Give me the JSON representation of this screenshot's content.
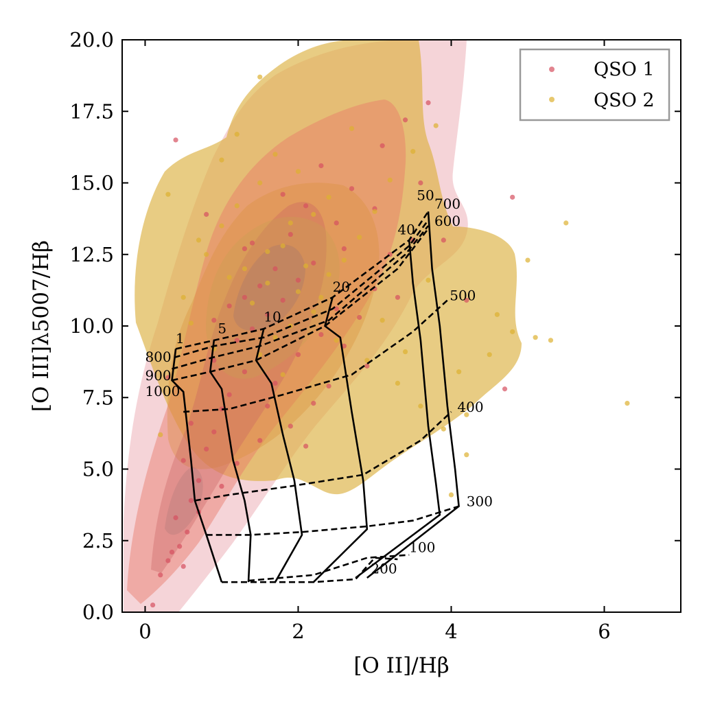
{
  "chart_data": {
    "type": "scatter",
    "xlabel": "[O II]/Hβ",
    "ylabel": "[O III]λ5007/Hβ",
    "xlim": [
      -0.3,
      7.0
    ],
    "ylim": [
      0.0,
      20.0
    ],
    "xticks": [
      0,
      2,
      4,
      6
    ],
    "yticks": [
      0.0,
      2.5,
      5.0,
      7.5,
      10.0,
      12.5,
      15.0,
      17.5,
      20.0
    ],
    "xtick_labels": [
      "0",
      "2",
      "4",
      "6"
    ],
    "ytick_labels": [
      "0.0",
      "2.5",
      "5.0",
      "7.5",
      "10.0",
      "12.5",
      "15.0",
      "17.5",
      "20.0"
    ],
    "legend_position": "top-right",
    "colors": {
      "qso1": "#d55060",
      "qso2": "#ddb030"
    },
    "series": [
      {
        "name": "QSO 1",
        "color": "#d55060",
        "points": [
          [
            0.1,
            0.25
          ],
          [
            0.2,
            1.3
          ],
          [
            0.35,
            2.1
          ],
          [
            0.45,
            2.3
          ],
          [
            0.55,
            2.8
          ],
          [
            0.4,
            3.3
          ],
          [
            0.6,
            3.9
          ],
          [
            0.7,
            4.6
          ],
          [
            0.5,
            5.3
          ],
          [
            0.8,
            5.7
          ],
          [
            0.9,
            6.3
          ],
          [
            0.6,
            6.6
          ],
          [
            1.0,
            7.1
          ],
          [
            1.1,
            7.6
          ],
          [
            0.3,
            8.2
          ],
          [
            0.9,
            8.8
          ],
          [
            1.2,
            9.5
          ],
          [
            1.4,
            9.9
          ],
          [
            1.6,
            10.4
          ],
          [
            1.8,
            10.9
          ],
          [
            1.5,
            11.4
          ],
          [
            1.7,
            12.0
          ],
          [
            2.0,
            11.6
          ],
          [
            2.2,
            12.2
          ],
          [
            1.3,
            12.7
          ],
          [
            1.9,
            13.2
          ],
          [
            2.5,
            13.6
          ],
          [
            2.1,
            14.2
          ],
          [
            2.7,
            14.8
          ],
          [
            2.3,
            15.6
          ],
          [
            3.1,
            16.3
          ],
          [
            3.4,
            17.2
          ],
          [
            3.7,
            17.8
          ],
          [
            0.4,
            16.5
          ],
          [
            0.8,
            13.9
          ],
          [
            1.1,
            10.7
          ],
          [
            1.3,
            8.4
          ],
          [
            1.6,
            7.2
          ],
          [
            1.9,
            6.5
          ],
          [
            2.1,
            5.8
          ],
          [
            2.4,
            7.9
          ],
          [
            2.6,
            9.3
          ],
          [
            2.8,
            10.3
          ],
          [
            3.0,
            11.3
          ],
          [
            3.2,
            12.5
          ],
          [
            3.5,
            13.0
          ],
          [
            2.9,
            8.6
          ],
          [
            2.3,
            9.7
          ],
          [
            1.0,
            4.4
          ],
          [
            0.7,
            3.5
          ],
          [
            0.3,
            1.8
          ],
          [
            0.5,
            1.6
          ],
          [
            1.2,
            5.2
          ],
          [
            1.5,
            6.0
          ],
          [
            2.2,
            7.3
          ],
          [
            3.3,
            11.0
          ],
          [
            4.8,
            14.5
          ],
          [
            4.7,
            7.8
          ],
          [
            4.2,
            10.9
          ],
          [
            3.6,
            15.0
          ],
          [
            1.4,
            12.9
          ],
          [
            1.8,
            14.6
          ],
          [
            2.0,
            9.0
          ],
          [
            2.5,
            10.6
          ],
          [
            1.7,
            8.0
          ],
          [
            0.9,
            10.2
          ],
          [
            1.3,
            11.0
          ],
          [
            2.6,
            12.7
          ],
          [
            3.9,
            13.0
          ],
          [
            3.0,
            14.1
          ]
        ]
      },
      {
        "name": "QSO 2",
        "color": "#ddb030",
        "points": [
          [
            0.5,
            11.0
          ],
          [
            0.8,
            12.5
          ],
          [
            1.0,
            13.5
          ],
          [
            1.2,
            14.2
          ],
          [
            1.5,
            15.0
          ],
          [
            1.7,
            16.0
          ],
          [
            1.5,
            18.7
          ],
          [
            0.3,
            14.6
          ],
          [
            1.3,
            12.0
          ],
          [
            1.6,
            11.5
          ],
          [
            1.8,
            12.8
          ],
          [
            2.0,
            11.2
          ],
          [
            2.2,
            10.5
          ],
          [
            1.9,
            10.0
          ],
          [
            1.7,
            9.6
          ],
          [
            2.4,
            11.8
          ],
          [
            2.6,
            12.3
          ],
          [
            2.8,
            13.1
          ],
          [
            3.0,
            14.0
          ],
          [
            3.2,
            15.1
          ],
          [
            3.5,
            16.1
          ],
          [
            3.8,
            17.0
          ],
          [
            2.5,
            9.5
          ],
          [
            2.9,
            8.8
          ],
          [
            3.3,
            8.0
          ],
          [
            3.6,
            7.2
          ],
          [
            3.9,
            6.4
          ],
          [
            4.2,
            5.5
          ],
          [
            4.0,
            4.1
          ],
          [
            4.2,
            6.9
          ],
          [
            4.5,
            9.0
          ],
          [
            4.8,
            9.8
          ],
          [
            5.1,
            9.6
          ],
          [
            5.3,
            9.5
          ],
          [
            5.5,
            13.6
          ],
          [
            6.3,
            7.3
          ],
          [
            5.0,
            12.3
          ],
          [
            4.6,
            10.4
          ],
          [
            1.4,
            10.8
          ],
          [
            1.6,
            12.6
          ],
          [
            1.9,
            13.6
          ],
          [
            2.1,
            12.1
          ],
          [
            2.3,
            11.0
          ],
          [
            1.1,
            11.7
          ],
          [
            0.9,
            9.2
          ],
          [
            0.6,
            10.1
          ],
          [
            0.2,
            6.2
          ],
          [
            1.0,
            15.8
          ],
          [
            2.0,
            15.4
          ],
          [
            2.7,
            16.9
          ],
          [
            3.1,
            10.2
          ],
          [
            3.4,
            9.1
          ],
          [
            2.2,
            13.9
          ],
          [
            1.5,
            9.0
          ],
          [
            1.8,
            8.3
          ],
          [
            2.4,
            14.5
          ],
          [
            0.7,
            13.0
          ],
          [
            1.2,
            16.7
          ],
          [
            3.7,
            11.6
          ],
          [
            4.1,
            8.4
          ]
        ]
      }
    ],
    "grid_labels": {
      "one_to_fifty": [
        {
          "text": "1",
          "x": 0.4,
          "y": 9.4
        },
        {
          "text": "5",
          "x": 0.95,
          "y": 9.75
        },
        {
          "text": "10",
          "x": 1.55,
          "y": 10.15
        },
        {
          "text": "20",
          "x": 2.45,
          "y": 11.2
        },
        {
          "text": "40",
          "x": 3.3,
          "y": 13.2
        },
        {
          "text": "50",
          "x": 3.55,
          "y": 14.4
        }
      ],
      "hundreds": [
        {
          "text": "800",
          "x": 0.0,
          "y": 8.75
        },
        {
          "text": "900",
          "x": 0.0,
          "y": 8.1
        },
        {
          "text": "1000",
          "x": 0.0,
          "y": 7.55
        },
        {
          "text": "700",
          "x": 3.78,
          "y": 14.1
        },
        {
          "text": "600",
          "x": 3.78,
          "y": 13.5
        },
        {
          "text": "500",
          "x": 3.98,
          "y": 10.9
        },
        {
          "text": "400",
          "x": 4.08,
          "y": 7.0
        },
        {
          "text": "300",
          "x": 4.2,
          "y": 3.7
        },
        {
          "text": "100",
          "x": 3.45,
          "y": 2.1
        },
        {
          "text": "200",
          "x": 2.95,
          "y": 1.35
        }
      ]
    },
    "solid_grid_lines": [
      [
        [
          0.4,
          9.2
        ],
        [
          0.35,
          8.1
        ],
        [
          0.5,
          7.7
        ],
        [
          0.6,
          5.3
        ],
        [
          0.65,
          3.9
        ],
        [
          0.8,
          2.7
        ],
        [
          1.0,
          1.05
        ]
      ],
      [
        [
          0.9,
          9.5
        ],
        [
          0.85,
          8.4
        ],
        [
          1.0,
          7.8
        ],
        [
          1.15,
          5.3
        ],
        [
          1.3,
          3.9
        ],
        [
          1.38,
          2.7
        ],
        [
          1.35,
          1.05
        ]
      ],
      [
        [
          1.55,
          9.9
        ],
        [
          1.45,
          8.8
        ],
        [
          1.65,
          8.0
        ],
        [
          1.8,
          6.2
        ],
        [
          1.95,
          4.6
        ],
        [
          2.05,
          2.7
        ],
        [
          1.7,
          1.05
        ]
      ],
      [
        [
          2.45,
          11.0
        ],
        [
          2.35,
          10.0
        ],
        [
          2.55,
          9.6
        ],
        [
          2.7,
          7.0
        ],
        [
          2.85,
          4.6
        ],
        [
          2.9,
          2.9
        ],
        [
          2.2,
          1.05
        ]
      ],
      [
        [
          3.45,
          13.0
        ],
        [
          3.5,
          11.5
        ],
        [
          3.6,
          9.5
        ],
        [
          3.7,
          6.5
        ],
        [
          3.8,
          4.5
        ],
        [
          3.85,
          3.4
        ],
        [
          2.75,
          1.2
        ]
      ],
      [
        [
          3.7,
          14.0
        ],
        [
          3.75,
          12.0
        ],
        [
          3.85,
          10.0
        ],
        [
          3.95,
          7.2
        ],
        [
          4.05,
          5.0
        ],
        [
          4.1,
          3.7
        ],
        [
          2.9,
          1.2
        ]
      ]
    ],
    "dashed_grid_lines": [
      [
        [
          0.4,
          9.2
        ],
        [
          0.9,
          9.5
        ],
        [
          1.55,
          9.9
        ],
        [
          2.45,
          11.0
        ],
        [
          3.45,
          13.0
        ],
        [
          3.7,
          14.0
        ]
      ],
      [
        [
          0.38,
          8.9
        ],
        [
          0.9,
          9.3
        ],
        [
          1.55,
          9.6
        ],
        [
          2.45,
          10.6
        ],
        [
          3.45,
          12.8
        ],
        [
          3.7,
          13.7
        ]
      ],
      [
        [
          0.35,
          8.5
        ],
        [
          0.88,
          8.9
        ],
        [
          1.5,
          9.3
        ],
        [
          2.4,
          10.2
        ],
        [
          3.4,
          12.5
        ],
        [
          3.7,
          13.5
        ]
      ],
      [
        [
          0.35,
          8.1
        ],
        [
          0.85,
          8.4
        ],
        [
          1.45,
          8.8
        ],
        [
          2.35,
          10.0
        ],
        [
          3.3,
          12.0
        ],
        [
          3.7,
          13.4
        ]
      ],
      [
        [
          0.5,
          7.0
        ],
        [
          1.1,
          7.1
        ],
        [
          1.8,
          7.6
        ],
        [
          2.7,
          8.3
        ],
        [
          3.5,
          9.8
        ],
        [
          3.95,
          10.9
        ]
      ],
      [
        [
          0.65,
          3.9
        ],
        [
          1.1,
          4.1
        ],
        [
          1.9,
          4.4
        ],
        [
          2.85,
          4.8
        ],
        [
          3.6,
          6.0
        ],
        [
          4.0,
          7.0
        ]
      ],
      [
        [
          0.8,
          2.7
        ],
        [
          1.38,
          2.7
        ],
        [
          2.05,
          2.8
        ],
        [
          2.9,
          3.0
        ],
        [
          3.5,
          3.2
        ],
        [
          4.1,
          3.7
        ]
      ],
      [
        [
          1.0,
          1.05
        ],
        [
          1.35,
          1.05
        ],
        [
          1.7,
          1.05
        ],
        [
          2.2,
          1.05
        ],
        [
          2.75,
          1.15
        ],
        [
          3.0,
          1.9
        ],
        [
          3.3,
          1.85
        ]
      ],
      [
        [
          1.35,
          1.1
        ],
        [
          2.2,
          1.3
        ],
        [
          2.9,
          1.9
        ],
        [
          3.45,
          2.0
        ]
      ]
    ]
  }
}
